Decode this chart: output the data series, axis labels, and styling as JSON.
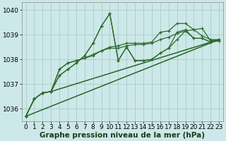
{
  "background_color": "#cde8e8",
  "plot_bg_color": "#cde8e8",
  "grid_color": "#aacccc",
  "line_color": "#2d6b2d",
  "marker_color": "#2d6b2d",
  "xlabel": "Graphe pression niveau de la mer (hPa)",
  "xlim": [
    -0.5,
    23.5
  ],
  "ylim": [
    1035.5,
    1040.3
  ],
  "yticks": [
    1036,
    1037,
    1038,
    1039,
    1040
  ],
  "xticks": [
    0,
    1,
    2,
    3,
    4,
    5,
    6,
    7,
    8,
    9,
    10,
    11,
    12,
    13,
    14,
    15,
    16,
    17,
    18,
    19,
    20,
    21,
    22,
    23
  ],
  "series": [
    [
      1035.7,
      1036.4,
      1036.65,
      1036.7,
      1037.35,
      1037.6,
      1037.85,
      1038.15,
      1038.65,
      1039.35,
      1039.85,
      1037.95,
      1038.5,
      1037.95,
      1037.95,
      1038.0,
      1038.25,
      1038.45,
      1038.8,
      1039.15,
      1038.85,
      1038.85,
      1038.7,
      1038.75
    ],
    [
      1035.7,
      1036.4,
      1036.65,
      1036.7,
      1037.6,
      1037.85,
      1037.95,
      1038.05,
      1038.15,
      1038.35,
      1038.45,
      1038.45,
      1038.55,
      1038.6,
      1038.6,
      1038.65,
      1038.8,
      1038.9,
      1039.05,
      1039.15,
      1039.2,
      1039.25,
      1038.75,
      1038.8
    ],
    [
      1035.7,
      1036.4,
      1036.65,
      1036.7,
      1037.6,
      1037.85,
      1037.95,
      1038.05,
      1038.2,
      1038.35,
      1038.5,
      1038.55,
      1038.65,
      1038.65,
      1038.65,
      1038.7,
      1039.1,
      1039.15,
      1039.45,
      1039.45,
      1039.2,
      1038.95,
      1038.8,
      1038.8
    ],
    [
      1035.7,
      1036.4,
      1036.65,
      1036.7,
      1037.35,
      1037.6,
      1037.85,
      1038.15,
      1038.65,
      1039.35,
      1039.85,
      1037.95,
      1038.5,
      1037.95,
      1037.95,
      1038.0,
      1038.25,
      1038.45,
      1039.1,
      1039.2,
      1038.85,
      1038.85,
      1038.7,
      1038.75
    ]
  ],
  "straight_series": [
    {
      "x0": 0,
      "y0": 1035.7,
      "x1": 23,
      "y1": 1038.8
    },
    {
      "x0": 0,
      "y0": 1035.7,
      "x1": 23,
      "y1": 1038.8
    },
    {
      "x0": 3,
      "y0": 1036.7,
      "x1": 23,
      "y1": 1038.8
    },
    {
      "x0": 3,
      "y0": 1036.7,
      "x1": 23,
      "y1": 1038.8
    }
  ],
  "xlabel_fontsize": 7.5,
  "tick_fontsize": 6.5,
  "line_width": 0.9,
  "marker_size": 3.5
}
